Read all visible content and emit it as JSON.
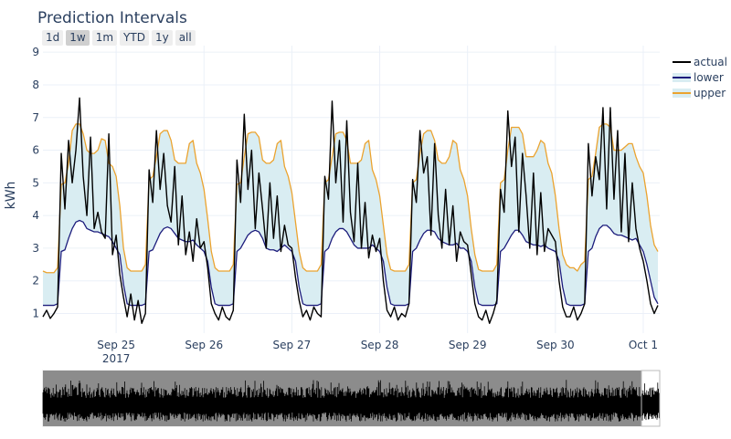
{
  "title": "Prediction Intervals",
  "range_buttons": [
    {
      "label": "1d",
      "active": false
    },
    {
      "label": "1w",
      "active": true
    },
    {
      "label": "1m",
      "active": false
    },
    {
      "label": "YTD",
      "active": false
    },
    {
      "label": "1y",
      "active": false
    },
    {
      "label": "all",
      "active": false
    }
  ],
  "chart_data": {
    "type": "line",
    "title": "Prediction Intervals",
    "xlabel": "",
    "ylabel": "kWh",
    "x_start": "2017-09-24 04:00",
    "x_step": "1 hour",
    "xlim": [
      "2017-09-24 04:00",
      "2017-10-01 04:30"
    ],
    "ylim": [
      0.4,
      9.2
    ],
    "yticks": [
      1,
      2,
      3,
      4,
      5,
      6,
      7,
      8,
      9
    ],
    "xticks": [
      {
        "date": "2017-09-25",
        "label": "Sep 25",
        "sublabel": "2017"
      },
      {
        "date": "2017-09-26",
        "label": "Sep 26",
        "sublabel": ""
      },
      {
        "date": "2017-09-27",
        "label": "Sep 27",
        "sublabel": ""
      },
      {
        "date": "2017-09-28",
        "label": "Sep 28",
        "sublabel": ""
      },
      {
        "date": "2017-09-29",
        "label": "Sep 29",
        "sublabel": ""
      },
      {
        "date": "2017-09-30",
        "label": "Sep 30",
        "sublabel": ""
      },
      {
        "date": "2017-10-01",
        "label": "Oct 1",
        "sublabel": ""
      }
    ],
    "grid": true,
    "legend_position": "top-right",
    "fill_between": {
      "lower": "lower",
      "upper": "upper",
      "color": "#d9edf2"
    },
    "range_slider": true,
    "series": [
      {
        "name": "actual",
        "color": "#000000",
        "values": [
          0.9,
          1.1,
          0.85,
          1.0,
          1.2,
          5.9,
          4.2,
          6.3,
          5.0,
          6.0,
          7.6,
          5.2,
          4.0,
          6.4,
          3.6,
          4.1,
          3.5,
          3.3,
          6.5,
          2.8,
          3.4,
          2.2,
          1.5,
          0.9,
          1.6,
          0.8,
          1.4,
          0.7,
          1.0,
          5.4,
          4.4,
          6.6,
          4.8,
          5.9,
          4.3,
          3.8,
          5.5,
          3.1,
          4.6,
          2.8,
          3.5,
          2.6,
          3.9,
          3.0,
          3.2,
          2.4,
          1.3,
          1.0,
          0.8,
          1.2,
          0.9,
          0.8,
          1.1,
          5.7,
          4.4,
          7.1,
          4.8,
          6.0,
          3.6,
          5.3,
          4.2,
          3.0,
          5.0,
          3.3,
          4.6,
          2.9,
          3.7,
          3.1,
          3.0,
          2.1,
          1.4,
          0.9,
          1.1,
          0.8,
          1.2,
          1.0,
          0.9,
          5.2,
          4.5,
          7.5,
          5.0,
          6.3,
          3.8,
          6.9,
          4.1,
          3.2,
          5.6,
          3.0,
          4.4,
          2.7,
          3.4,
          2.9,
          3.3,
          2.0,
          1.1,
          0.9,
          1.2,
          0.8,
          1.0,
          0.9,
          1.3,
          5.1,
          4.4,
          6.6,
          5.3,
          5.8,
          3.4,
          6.2,
          4.0,
          3.0,
          4.8,
          3.1,
          4.3,
          2.6,
          3.5,
          3.2,
          3.1,
          2.2,
          1.3,
          0.9,
          0.8,
          1.1,
          0.7,
          1.0,
          1.4,
          4.8,
          4.1,
          7.2,
          5.5,
          6.4,
          3.5,
          5.9,
          4.6,
          3.0,
          5.3,
          2.8,
          4.7,
          2.9,
          3.6,
          3.4,
          3.2,
          2.0,
          1.2,
          0.9,
          0.9,
          1.2,
          0.8,
          1.0,
          1.3,
          6.2,
          4.6,
          5.8,
          5.1,
          7.3,
          4.2,
          7.3,
          4.5,
          6.6,
          3.5,
          5.9,
          3.2,
          5.0,
          3.6,
          3.0,
          2.6,
          2.0,
          1.3,
          1.0,
          1.25
        ]
      },
      {
        "name": "lower",
        "color": "#1c1c7c",
        "values": [
          1.25,
          1.25,
          1.25,
          1.25,
          1.3,
          2.9,
          2.95,
          3.3,
          3.6,
          3.8,
          3.85,
          3.8,
          3.6,
          3.55,
          3.5,
          3.5,
          3.45,
          3.4,
          3.35,
          3.2,
          3.0,
          2.8,
          1.9,
          1.3,
          1.25,
          1.25,
          1.25,
          1.25,
          1.3,
          2.9,
          2.95,
          3.2,
          3.45,
          3.6,
          3.65,
          3.6,
          3.45,
          3.3,
          3.25,
          3.2,
          3.2,
          3.25,
          3.1,
          3.0,
          2.9,
          2.6,
          1.8,
          1.3,
          1.25,
          1.25,
          1.25,
          1.25,
          1.3,
          2.9,
          3.0,
          3.2,
          3.4,
          3.5,
          3.55,
          3.5,
          3.3,
          3.0,
          2.95,
          2.95,
          2.9,
          3.0,
          3.1,
          3.0,
          2.9,
          2.6,
          1.8,
          1.3,
          1.25,
          1.25,
          1.25,
          1.25,
          1.3,
          2.9,
          3.0,
          3.3,
          3.5,
          3.6,
          3.6,
          3.5,
          3.3,
          3.1,
          3.0,
          3.0,
          3.0,
          3.0,
          3.1,
          3.0,
          2.9,
          2.6,
          1.8,
          1.3,
          1.25,
          1.25,
          1.25,
          1.25,
          1.3,
          2.9,
          3.0,
          3.25,
          3.45,
          3.55,
          3.55,
          3.5,
          3.3,
          3.2,
          3.15,
          3.1,
          3.1,
          3.15,
          3.0,
          3.0,
          2.9,
          2.6,
          1.8,
          1.3,
          1.25,
          1.25,
          1.25,
          1.25,
          1.3,
          2.9,
          3.0,
          3.2,
          3.4,
          3.55,
          3.55,
          3.4,
          3.2,
          3.15,
          3.1,
          3.1,
          3.05,
          3.1,
          3.0,
          2.95,
          2.9,
          2.6,
          1.8,
          1.3,
          1.25,
          1.25,
          1.25,
          1.25,
          1.3,
          2.9,
          3.0,
          3.35,
          3.6,
          3.7,
          3.7,
          3.6,
          3.45,
          3.4,
          3.4,
          3.35,
          3.3,
          3.25,
          3.3,
          3.1,
          2.9,
          2.5,
          2.0,
          1.5,
          1.3
        ]
      },
      {
        "name": "upper",
        "color": "#eba32f",
        "values": [
          2.3,
          2.25,
          2.25,
          2.25,
          2.4,
          4.95,
          5.0,
          5.6,
          6.6,
          6.8,
          6.8,
          6.5,
          6.0,
          5.9,
          5.9,
          6.0,
          6.35,
          6.3,
          5.6,
          5.5,
          5.2,
          4.3,
          3.0,
          2.4,
          2.3,
          2.3,
          2.3,
          2.3,
          2.5,
          5.1,
          5.2,
          5.8,
          6.5,
          6.6,
          6.6,
          6.3,
          5.7,
          5.6,
          5.6,
          5.6,
          6.2,
          6.3,
          5.6,
          5.3,
          4.8,
          3.9,
          2.9,
          2.4,
          2.3,
          2.3,
          2.3,
          2.3,
          2.5,
          4.95,
          5.0,
          5.8,
          6.5,
          6.55,
          6.55,
          6.4,
          5.7,
          5.6,
          5.6,
          5.7,
          6.2,
          6.3,
          5.5,
          5.2,
          4.7,
          3.8,
          2.9,
          2.4,
          2.3,
          2.3,
          2.3,
          2.3,
          2.5,
          5.0,
          5.1,
          5.8,
          6.5,
          6.55,
          6.55,
          6.3,
          5.6,
          5.6,
          5.6,
          5.7,
          6.2,
          6.3,
          5.4,
          5.1,
          4.6,
          3.7,
          2.8,
          2.35,
          2.3,
          2.3,
          2.3,
          2.3,
          2.5,
          5.0,
          5.1,
          5.9,
          6.5,
          6.6,
          6.6,
          6.3,
          5.7,
          5.6,
          5.6,
          5.8,
          6.3,
          6.2,
          5.4,
          5.1,
          4.6,
          3.6,
          2.8,
          2.35,
          2.3,
          2.3,
          2.3,
          2.3,
          2.5,
          5.0,
          5.1,
          6.0,
          6.7,
          6.7,
          6.7,
          6.5,
          5.8,
          5.8,
          5.8,
          6.0,
          6.3,
          6.2,
          5.6,
          5.3,
          4.6,
          3.6,
          2.8,
          2.5,
          2.4,
          2.4,
          2.3,
          2.5,
          2.6,
          5.1,
          5.2,
          5.9,
          6.7,
          6.8,
          6.8,
          6.7,
          6.0,
          6.0,
          6.0,
          6.1,
          6.2,
          6.2,
          5.8,
          5.5,
          5.3,
          4.6,
          3.7,
          3.1,
          2.9
        ]
      }
    ]
  }
}
